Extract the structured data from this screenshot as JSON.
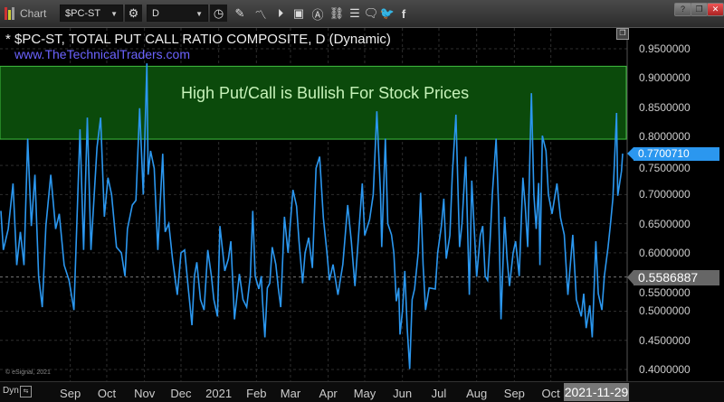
{
  "toolbar": {
    "app_label": "Chart",
    "symbol": "$PC-ST",
    "interval": "D",
    "icons": [
      "link-settings-icon",
      "clock-icon",
      "pencil-icon",
      "chart-study-icon",
      "play-icon",
      "text-box-icon",
      "alert-icon",
      "link-icon",
      "list-edit-icon",
      "comment-icon",
      "twitter-icon",
      "facebook-icon"
    ],
    "window_buttons": {
      "help": "?",
      "restore": "❐",
      "close": "✕"
    }
  },
  "chart_header": {
    "title": "* $PC-ST, TOTAL PUT CALL RATIO COMPOSITE, D (Dynamic)",
    "website": "www.TheTechnicalTraders.com",
    "copyright": "© eSignal, 2021"
  },
  "annotation": {
    "text": "High Put/Call is Bullish For Stock Prices",
    "range": [
      0.795,
      0.92
    ],
    "fill_color": "#0b4a0b",
    "border_color": "#3fbf3f"
  },
  "x_axis": {
    "mode_label": "Dyn",
    "current_date": "2021-11-29"
  },
  "chart_data": {
    "type": "line",
    "title": "* $PC-ST, TOTAL PUT CALL RATIO COMPOSITE, D (Dynamic)",
    "xlabel": "",
    "ylabel": "",
    "ylim": [
      0.4,
      0.95
    ],
    "xlim": [
      "2020-07-06",
      "2021-11-29"
    ],
    "grid": true,
    "line_color": "#2b97ef",
    "x_tick_labels": [
      {
        "label": "Sep",
        "date": "2020-09-01"
      },
      {
        "label": "Oct",
        "date": "2020-10-01"
      },
      {
        "label": "Nov",
        "date": "2020-11-01"
      },
      {
        "label": "Dec",
        "date": "2020-12-01"
      },
      {
        "label": "2021",
        "date": "2021-01-01"
      },
      {
        "label": "Feb",
        "date": "2021-02-01"
      },
      {
        "label": "Mar",
        "date": "2021-03-01"
      },
      {
        "label": "Apr",
        "date": "2021-04-01"
      },
      {
        "label": "May",
        "date": "2021-05-01"
      },
      {
        "label": "Jun",
        "date": "2021-06-01"
      },
      {
        "label": "Jul",
        "date": "2021-07-01"
      },
      {
        "label": "Aug",
        "date": "2021-08-01"
      },
      {
        "label": "Sep",
        "date": "2021-09-01"
      },
      {
        "label": "Oct",
        "date": "2021-10-01"
      }
    ],
    "y_tick_labels": [
      "0.9500000",
      "0.9000000",
      "0.8500000",
      "0.8000000",
      "0.7500000",
      "0.7000000",
      "0.6500000",
      "0.6000000",
      "0.5500000",
      "0.5000000",
      "0.4500000",
      "0.4000000"
    ],
    "last_value": {
      "label": "0.7700710",
      "value": 0.770071,
      "color": "#2b97ef"
    },
    "reference_line": {
      "label": "0.5586887",
      "value": 0.5586887
    },
    "series": [
      {
        "x": [
          "2020-07-06",
          "2020-07-08",
          "2020-07-12",
          "2020-07-16",
          "2020-07-19",
          "2020-07-22",
          "2020-07-25",
          "2020-07-28",
          "2020-07-31",
          "2020-08-03",
          "2020-08-06",
          "2020-08-09",
          "2020-08-12",
          "2020-08-16",
          "2020-08-20",
          "2020-08-23",
          "2020-08-27",
          "2020-08-31",
          "2020-09-04",
          "2020-09-09",
          "2020-09-12",
          "2020-09-15",
          "2020-09-18",
          "2020-09-23",
          "2020-09-26",
          "2020-09-29",
          "2020-10-02",
          "2020-10-05",
          "2020-10-09",
          "2020-10-13",
          "2020-10-16",
          "2020-10-18",
          "2020-10-22",
          "2020-10-25",
          "2020-10-28",
          "2020-10-31",
          "2020-11-03",
          "2020-11-04",
          "2020-11-06",
          "2020-11-09",
          "2020-11-12",
          "2020-11-16",
          "2020-11-18",
          "2020-11-21",
          "2020-11-24",
          "2020-11-28",
          "2020-12-01",
          "2020-12-04",
          "2020-12-07",
          "2020-12-10",
          "2020-12-12",
          "2020-12-14",
          "2020-12-17",
          "2020-12-20",
          "2020-12-23",
          "2020-12-26",
          "2020-12-28",
          "2020-12-31",
          "2021-01-02",
          "2021-01-06",
          "2021-01-09",
          "2021-01-11",
          "2021-01-14",
          "2021-01-18",
          "2021-01-21",
          "2021-01-24",
          "2021-01-27",
          "2021-01-29",
          "2021-01-31",
          "2021-02-03",
          "2021-02-05",
          "2021-02-06",
          "2021-02-08",
          "2021-02-10",
          "2021-02-12",
          "2021-02-14",
          "2021-02-17",
          "2021-02-19",
          "2021-02-21",
          "2021-02-24",
          "2021-02-27",
          "2021-03-03",
          "2021-03-06",
          "2021-03-08",
          "2021-03-11",
          "2021-03-13",
          "2021-03-16",
          "2021-03-19",
          "2021-03-22",
          "2021-03-25",
          "2021-03-28",
          "2021-03-31",
          "2021-04-02",
          "2021-04-05",
          "2021-04-09",
          "2021-04-13",
          "2021-04-17",
          "2021-04-20",
          "2021-04-23",
          "2021-04-27",
          "2021-04-29",
          "2021-05-01",
          "2021-05-05",
          "2021-05-08",
          "2021-05-11",
          "2021-05-14",
          "2021-05-15",
          "2021-05-18",
          "2021-05-20",
          "2021-05-23",
          "2021-05-25",
          "2021-05-27",
          "2021-05-29",
          "2021-05-30",
          "2021-06-01",
          "2021-06-03",
          "2021-06-05",
          "2021-06-07",
          "2021-06-09",
          "2021-06-11",
          "2021-06-14",
          "2021-06-16",
          "2021-06-18",
          "2021-06-20",
          "2021-06-23",
          "2021-06-28",
          "2021-06-30",
          "2021-07-03",
          "2021-07-05",
          "2021-07-07",
          "2021-07-10",
          "2021-07-12",
          "2021-07-15",
          "2021-07-18",
          "2021-07-20",
          "2021-07-23",
          "2021-07-26",
          "2021-07-28",
          "2021-08-01",
          "2021-08-04",
          "2021-08-06",
          "2021-08-08",
          "2021-08-10",
          "2021-08-12",
          "2021-08-14",
          "2021-08-17",
          "2021-08-19",
          "2021-08-21",
          "2021-08-24",
          "2021-08-26",
          "2021-08-28",
          "2021-08-31",
          "2021-09-02",
          "2021-09-05",
          "2021-09-08",
          "2021-09-10",
          "2021-09-12",
          "2021-09-15",
          "2021-09-17",
          "2021-09-19",
          "2021-09-21",
          "2021-09-22",
          "2021-09-24",
          "2021-09-27",
          "2021-09-29",
          "2021-10-02",
          "2021-10-06",
          "2021-10-09",
          "2021-10-12",
          "2021-10-14",
          "2021-10-15",
          "2021-10-19",
          "2021-10-22",
          "2021-10-26",
          "2021-10-28",
          "2021-10-30",
          "2021-11-02",
          "2021-11-04",
          "2021-11-07",
          "2021-11-09",
          "2021-11-12",
          "2021-11-14",
          "2021-11-17",
          "2021-11-19",
          "2021-11-21",
          "2021-11-24",
          "2021-11-25",
          "2021-11-28",
          "2021-11-29"
        ],
        "y": [
          0.672,
          0.605,
          0.641,
          0.719,
          0.579,
          0.636,
          0.579,
          0.796,
          0.646,
          0.734,
          0.559,
          0.507,
          0.646,
          0.734,
          0.641,
          0.667,
          0.579,
          0.553,
          0.502,
          0.812,
          0.605,
          0.832,
          0.605,
          0.781,
          0.832,
          0.662,
          0.729,
          0.7,
          0.61,
          0.6,
          0.56,
          0.641,
          0.682,
          0.69,
          0.848,
          0.7,
          0.925,
          0.734,
          0.775,
          0.745,
          0.605,
          0.77,
          0.636,
          0.65,
          0.59,
          0.528,
          0.6,
          0.605,
          0.54,
          0.476,
          0.56,
          0.584,
          0.52,
          0.502,
          0.605,
          0.56,
          0.52,
          0.491,
          0.646,
          0.569,
          0.59,
          0.62,
          0.486,
          0.564,
          0.52,
          0.507,
          0.56,
          0.672,
          0.56,
          0.538,
          0.56,
          0.517,
          0.455,
          0.54,
          0.548,
          0.61,
          0.58,
          0.54,
          0.507,
          0.662,
          0.6,
          0.708,
          0.68,
          0.62,
          0.548,
          0.6,
          0.626,
          0.574,
          0.745,
          0.765,
          0.66,
          0.6,
          0.553,
          0.58,
          0.528,
          0.58,
          0.682,
          0.62,
          0.543,
          0.66,
          0.719,
          0.63,
          0.657,
          0.7,
          0.843,
          0.7,
          0.61,
          0.796,
          0.65,
          0.631,
          0.6,
          0.517,
          0.54,
          0.46,
          0.5,
          0.569,
          0.47,
          0.401,
          0.52,
          0.538,
          0.6,
          0.703,
          0.58,
          0.502,
          0.54,
          0.538,
          0.6,
          0.646,
          0.693,
          0.59,
          0.63,
          0.734,
          0.837,
          0.61,
          0.65,
          0.765,
          0.528,
          0.724,
          0.559,
          0.63,
          0.646,
          0.56,
          0.553,
          0.62,
          0.703,
          0.796,
          0.68,
          0.486,
          0.662,
          0.59,
          0.543,
          0.6,
          0.62,
          0.56,
          0.729,
          0.68,
          0.61,
          0.874,
          0.7,
          0.641,
          0.72,
          0.579,
          0.801,
          0.775,
          0.7,
          0.667,
          0.719,
          0.66,
          0.631,
          0.56,
          0.528,
          0.631,
          0.52,
          0.491,
          0.53,
          0.471,
          0.51,
          0.455,
          0.62,
          0.53,
          0.502,
          0.56,
          0.61,
          0.65,
          0.693,
          0.84,
          0.698,
          0.74,
          0.770071
        ]
      }
    ]
  }
}
